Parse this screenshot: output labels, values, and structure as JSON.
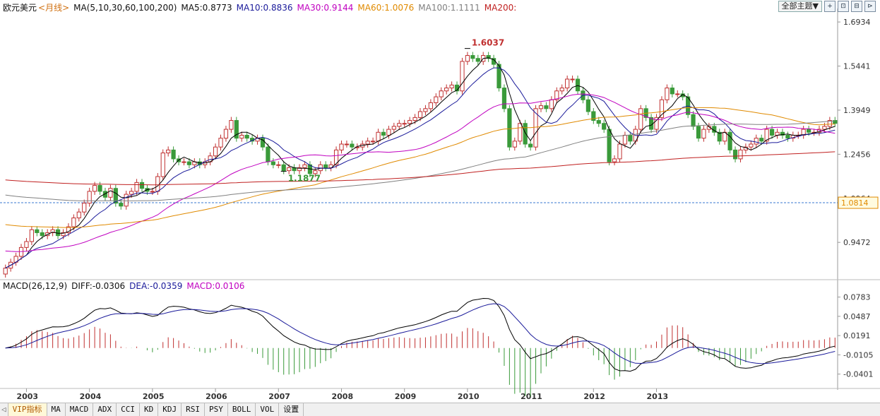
{
  "header": {
    "symbol": "欧元美元",
    "period": "<月线>",
    "ma_settings": "MA(5,10,30,60,100,200)",
    "ma5": "MA5:0.8773",
    "ma10": "MA10:0.8836",
    "ma30": "MA30:0.9144",
    "ma60": "MA60:1.0076",
    "ma100": "MA100:1.1111",
    "ma200": "MA200:"
  },
  "toolbar": {
    "theme_label": "全部主题▼",
    "buttons": [
      "+",
      "⊡",
      "⊟",
      "⊳"
    ]
  },
  "colors": {
    "up": "#c03030",
    "down": "#3a9a3a",
    "ma5": "#000000",
    "ma10": "#1a1a9a",
    "ma30": "#c000c0",
    "ma60": "#e08a00",
    "ma100": "#808080",
    "ma200": "#c02020",
    "diff": "#000000",
    "dea": "#1a1a9a"
  },
  "macd_header": {
    "title": "MACD(26,12,9)",
    "diff": "DIFF:-0.0306",
    "dea": "DEA:-0.0359",
    "macd": "MACD:0.0106"
  },
  "chart_data": [
    {
      "type": "candlestick",
      "title": "欧元美元 月线",
      "y_ticks": [
        "1.6934",
        "1.5441",
        "1.3949",
        "1.2456",
        "1.0964",
        "0.9472"
      ],
      "ylim": [
        0.84,
        1.72
      ],
      "x_ticks": [
        "2003",
        "2004",
        "2005",
        "2006",
        "2007",
        "2008",
        "2009",
        "2010",
        "2011",
        "2012",
        "2013"
      ],
      "current_price_label": "1.0814",
      "current_price_line": 1.0814,
      "annotations": [
        {
          "label": "1.6037",
          "value": 1.6037
        },
        {
          "label": "1.1877",
          "value": 1.1877
        }
      ],
      "closes": [
        0.86,
        0.88,
        0.9,
        0.93,
        0.95,
        0.99,
        0.98,
        0.97,
        0.98,
        0.99,
        0.97,
        0.98,
        1.0,
        1.03,
        1.05,
        1.08,
        1.12,
        1.14,
        1.12,
        1.1,
        1.13,
        1.08,
        1.07,
        1.11,
        1.12,
        1.15,
        1.13,
        1.12,
        1.12,
        1.17,
        1.25,
        1.26,
        1.23,
        1.22,
        1.22,
        1.21,
        1.22,
        1.21,
        1.22,
        1.24,
        1.27,
        1.3,
        1.33,
        1.36,
        1.3,
        1.31,
        1.3,
        1.29,
        1.3,
        1.27,
        1.22,
        1.21,
        1.21,
        1.19,
        1.2,
        1.19,
        1.2,
        1.21,
        1.18,
        1.19,
        1.21,
        1.2,
        1.21,
        1.26,
        1.28,
        1.28,
        1.27,
        1.27,
        1.28,
        1.29,
        1.29,
        1.32,
        1.31,
        1.33,
        1.34,
        1.35,
        1.35,
        1.36,
        1.37,
        1.39,
        1.4,
        1.42,
        1.44,
        1.46,
        1.47,
        1.48,
        1.46,
        1.56,
        1.58,
        1.57,
        1.56,
        1.58,
        1.57,
        1.55,
        1.47,
        1.4,
        1.27,
        1.29,
        1.35,
        1.28,
        1.27,
        1.4,
        1.41,
        1.4,
        1.43,
        1.46,
        1.47,
        1.5,
        1.5,
        1.46,
        1.43,
        1.39,
        1.36,
        1.35,
        1.33,
        1.22,
        1.23,
        1.28,
        1.31,
        1.29,
        1.33,
        1.4,
        1.37,
        1.33,
        1.37,
        1.43,
        1.47,
        1.45,
        1.45,
        1.44,
        1.38,
        1.34,
        1.3,
        1.33,
        1.34,
        1.32,
        1.29,
        1.32,
        1.26,
        1.23,
        1.26,
        1.27,
        1.28,
        1.3,
        1.29,
        1.33,
        1.31,
        1.32,
        1.31,
        1.3,
        1.31,
        1.31,
        1.33,
        1.32,
        1.32,
        1.33,
        1.34,
        1.36,
        1.35
      ]
    },
    {
      "type": "macd",
      "title": "MACD(26,12,9)",
      "y_ticks": [
        "0.0783",
        "0.0487",
        "0.0191",
        "-0.0105",
        "-0.0401"
      ],
      "ylim": [
        -0.06,
        0.092
      ],
      "series": [
        {
          "name": "DIFF",
          "value": -0.0306
        },
        {
          "name": "DEA",
          "value": -0.0359
        },
        {
          "name": "MACD",
          "value": 0.0106
        }
      ]
    }
  ],
  "tabs": [
    "◁",
    "VIP指标",
    "MA",
    "MACD",
    "ADX",
    "CCI",
    "KD",
    "KDJ",
    "RSI",
    "PSY",
    "BOLL",
    "VOL",
    "设置"
  ]
}
